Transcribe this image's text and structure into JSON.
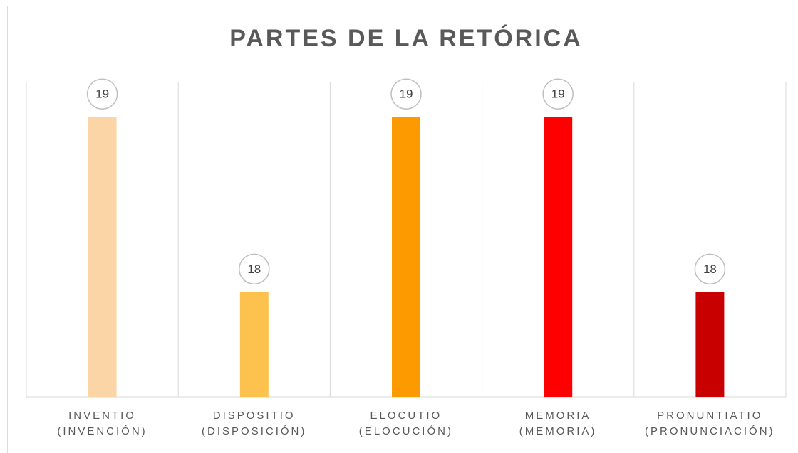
{
  "chart_data": {
    "type": "bar",
    "title": "PARTES DE LA RETÓRICA",
    "categories": [
      "INVENTIO\n(INVENCIÓN)",
      "DISPOSITIO\n(DISPOSICIÓN)",
      "ELOCUTIO\n(ELOCUCIÓN)",
      "MEMORIA\n(MEMORIA)",
      "PRONUNTIATIO\n(PRONUNCIACIÓN)"
    ],
    "values": [
      19,
      18,
      19,
      19,
      18
    ],
    "colors": [
      "#fbd5a5",
      "#fdc24e",
      "#fd9a00",
      "#ff0000",
      "#c90000"
    ],
    "ylim": [
      17.4,
      19.2
    ]
  }
}
